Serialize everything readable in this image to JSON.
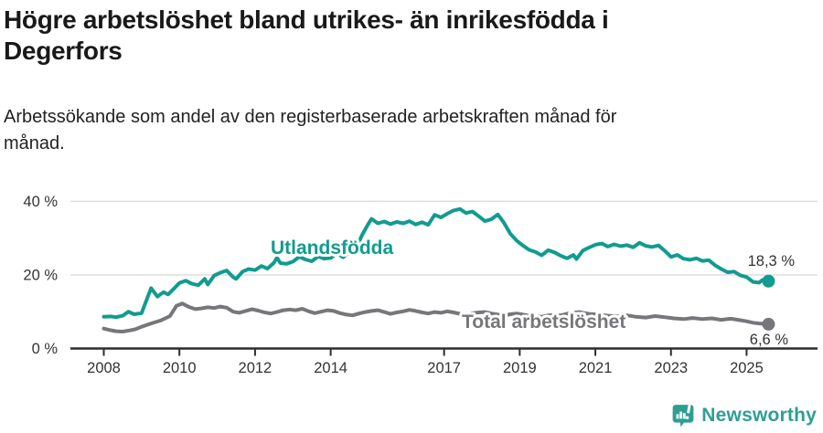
{
  "header": {
    "title_lines": [
      "Högre arbetslöshet bland utrikes- än inrikesfödda i",
      "Degerfors"
    ],
    "subtitle_lines": [
      "Arbetssökande som andel av den registerbaserade arbetskraften månad för",
      "månad."
    ]
  },
  "chart_data": {
    "type": "line",
    "title": "",
    "xlabel": "",
    "ylabel": "",
    "y_unit": "%",
    "ylim": [
      0,
      40
    ],
    "xlim": [
      2007.9,
      2025.9
    ],
    "grid": "horizontal-light",
    "legend_position": "inline-labels",
    "ytick_values": [
      0,
      20,
      40
    ],
    "ytick_labels": [
      "0 %",
      "20 %",
      "40 %"
    ],
    "xtick_values": [
      2008,
      2010,
      2012,
      2014,
      2017,
      2019,
      2021,
      2023,
      2025
    ],
    "xtick_labels": [
      "2008",
      "2010",
      "2012",
      "2014",
      "2017",
      "2019",
      "2021",
      "2023",
      "2025"
    ],
    "series": [
      {
        "name": "Utlandsfödda",
        "color": "#129B90",
        "end_label": "18,3 %",
        "end_value": 18.3,
        "points": [
          [
            2008.0,
            8.6
          ],
          [
            2008.17,
            8.7
          ],
          [
            2008.33,
            8.5
          ],
          [
            2008.5,
            8.9
          ],
          [
            2008.65,
            10.0
          ],
          [
            2008.8,
            9.3
          ],
          [
            2009.0,
            9.6
          ],
          [
            2009.25,
            16.4
          ],
          [
            2009.42,
            14.1
          ],
          [
            2009.58,
            15.3
          ],
          [
            2009.7,
            14.7
          ],
          [
            2009.85,
            16.2
          ],
          [
            2010.0,
            17.8
          ],
          [
            2010.17,
            18.4
          ],
          [
            2010.33,
            17.6
          ],
          [
            2010.5,
            17.2
          ],
          [
            2010.67,
            18.9
          ],
          [
            2010.75,
            17.4
          ],
          [
            2010.92,
            19.8
          ],
          [
            2011.08,
            20.6
          ],
          [
            2011.25,
            21.2
          ],
          [
            2011.42,
            19.4
          ],
          [
            2011.5,
            18.9
          ],
          [
            2011.67,
            20.9
          ],
          [
            2011.83,
            21.6
          ],
          [
            2012.0,
            21.3
          ],
          [
            2012.17,
            22.4
          ],
          [
            2012.33,
            21.7
          ],
          [
            2012.5,
            23.3
          ],
          [
            2012.58,
            24.7
          ],
          [
            2012.67,
            23.2
          ],
          [
            2012.83,
            23.0
          ],
          [
            2013.0,
            23.6
          ],
          [
            2013.17,
            24.9
          ],
          [
            2013.33,
            24.2
          ],
          [
            2013.5,
            23.7
          ],
          [
            2013.67,
            25.0
          ],
          [
            2013.83,
            24.4
          ],
          [
            2014.0,
            24.6
          ],
          [
            2014.17,
            25.9
          ],
          [
            2014.33,
            24.8
          ],
          [
            2014.5,
            26.2
          ],
          [
            2014.58,
            27.8
          ],
          [
            2014.67,
            27.2
          ],
          [
            2014.83,
            30.8
          ],
          [
            2015.0,
            33.9
          ],
          [
            2015.08,
            35.2
          ],
          [
            2015.25,
            34.0
          ],
          [
            2015.42,
            34.5
          ],
          [
            2015.58,
            33.8
          ],
          [
            2015.75,
            34.4
          ],
          [
            2015.92,
            34.0
          ],
          [
            2016.08,
            34.6
          ],
          [
            2016.25,
            33.7
          ],
          [
            2016.42,
            34.3
          ],
          [
            2016.58,
            33.6
          ],
          [
            2016.75,
            36.3
          ],
          [
            2016.92,
            35.6
          ],
          [
            2017.08,
            36.6
          ],
          [
            2017.25,
            37.5
          ],
          [
            2017.42,
            37.9
          ],
          [
            2017.58,
            36.8
          ],
          [
            2017.75,
            37.2
          ],
          [
            2017.92,
            35.9
          ],
          [
            2018.08,
            34.6
          ],
          [
            2018.25,
            35.1
          ],
          [
            2018.42,
            36.4
          ],
          [
            2018.58,
            34.2
          ],
          [
            2018.75,
            31.2
          ],
          [
            2018.92,
            29.3
          ],
          [
            2019.08,
            28.0
          ],
          [
            2019.25,
            26.8
          ],
          [
            2019.42,
            26.2
          ],
          [
            2019.58,
            25.3
          ],
          [
            2019.75,
            26.7
          ],
          [
            2019.92,
            26.1
          ],
          [
            2020.08,
            25.2
          ],
          [
            2020.25,
            24.5
          ],
          [
            2020.42,
            25.4
          ],
          [
            2020.5,
            24.3
          ],
          [
            2020.67,
            26.6
          ],
          [
            2020.83,
            27.4
          ],
          [
            2021.0,
            28.2
          ],
          [
            2021.17,
            28.5
          ],
          [
            2021.33,
            27.7
          ],
          [
            2021.5,
            28.3
          ],
          [
            2021.67,
            27.8
          ],
          [
            2021.83,
            28.1
          ],
          [
            2022.0,
            27.5
          ],
          [
            2022.17,
            28.7
          ],
          [
            2022.33,
            27.9
          ],
          [
            2022.5,
            27.6
          ],
          [
            2022.67,
            28.0
          ],
          [
            2022.83,
            26.6
          ],
          [
            2023.0,
            24.9
          ],
          [
            2023.17,
            25.4
          ],
          [
            2023.33,
            24.4
          ],
          [
            2023.5,
            24.1
          ],
          [
            2023.67,
            24.5
          ],
          [
            2023.83,
            23.8
          ],
          [
            2024.0,
            24.0
          ],
          [
            2024.17,
            22.6
          ],
          [
            2024.33,
            21.6
          ],
          [
            2024.5,
            20.7
          ],
          [
            2024.67,
            20.9
          ],
          [
            2024.83,
            19.9
          ],
          [
            2025.0,
            19.4
          ],
          [
            2025.17,
            18.1
          ],
          [
            2025.33,
            17.9
          ],
          [
            2025.42,
            18.6
          ],
          [
            2025.58,
            18.3
          ]
        ]
      },
      {
        "name": "Total arbetslöshet",
        "color": "#77777B",
        "end_label": "6,6 %",
        "end_value": 6.6,
        "points": [
          [
            2008.0,
            5.4
          ],
          [
            2008.17,
            5.0
          ],
          [
            2008.33,
            4.7
          ],
          [
            2008.5,
            4.6
          ],
          [
            2008.67,
            4.9
          ],
          [
            2008.83,
            5.2
          ],
          [
            2009.0,
            5.9
          ],
          [
            2009.25,
            6.8
          ],
          [
            2009.5,
            7.6
          ],
          [
            2009.75,
            8.8
          ],
          [
            2009.92,
            11.6
          ],
          [
            2010.08,
            12.2
          ],
          [
            2010.25,
            11.3
          ],
          [
            2010.42,
            10.7
          ],
          [
            2010.58,
            10.9
          ],
          [
            2010.75,
            11.2
          ],
          [
            2010.92,
            11.0
          ],
          [
            2011.08,
            11.4
          ],
          [
            2011.25,
            11.1
          ],
          [
            2011.42,
            10.0
          ],
          [
            2011.58,
            9.7
          ],
          [
            2011.75,
            10.2
          ],
          [
            2011.92,
            10.7
          ],
          [
            2012.08,
            10.3
          ],
          [
            2012.25,
            9.8
          ],
          [
            2012.42,
            9.5
          ],
          [
            2012.58,
            9.9
          ],
          [
            2012.75,
            10.4
          ],
          [
            2012.92,
            10.6
          ],
          [
            2013.08,
            10.4
          ],
          [
            2013.25,
            10.8
          ],
          [
            2013.42,
            10.1
          ],
          [
            2013.58,
            9.6
          ],
          [
            2013.75,
            10.0
          ],
          [
            2013.92,
            10.4
          ],
          [
            2014.08,
            10.2
          ],
          [
            2014.25,
            9.6
          ],
          [
            2014.42,
            9.2
          ],
          [
            2014.58,
            9.0
          ],
          [
            2014.75,
            9.5
          ],
          [
            2014.92,
            9.9
          ],
          [
            2015.08,
            10.2
          ],
          [
            2015.25,
            10.4
          ],
          [
            2015.42,
            9.9
          ],
          [
            2015.58,
            9.4
          ],
          [
            2015.75,
            9.8
          ],
          [
            2015.92,
            10.1
          ],
          [
            2016.08,
            10.5
          ],
          [
            2016.25,
            10.2
          ],
          [
            2016.42,
            9.8
          ],
          [
            2016.58,
            9.5
          ],
          [
            2016.75,
            9.9
          ],
          [
            2016.92,
            9.7
          ],
          [
            2017.08,
            10.1
          ],
          [
            2017.25,
            9.8
          ],
          [
            2017.42,
            9.4
          ],
          [
            2017.58,
            9.1
          ],
          [
            2017.75,
            9.6
          ],
          [
            2017.92,
            9.8
          ],
          [
            2018.08,
            9.9
          ],
          [
            2018.25,
            9.5
          ],
          [
            2018.42,
            9.2
          ],
          [
            2018.58,
            8.9
          ],
          [
            2018.75,
            9.3
          ],
          [
            2018.92,
            9.5
          ],
          [
            2019.08,
            9.2
          ],
          [
            2019.25,
            8.9
          ],
          [
            2019.42,
            8.7
          ],
          [
            2019.58,
            8.6
          ],
          [
            2019.75,
            9.0
          ],
          [
            2019.92,
            9.1
          ],
          [
            2020.08,
            9.0
          ],
          [
            2020.33,
            9.6
          ],
          [
            2020.58,
            9.9
          ],
          [
            2020.83,
            9.4
          ],
          [
            2021.08,
            9.2
          ],
          [
            2021.33,
            8.9
          ],
          [
            2021.58,
            8.7
          ],
          [
            2021.83,
            9.0
          ],
          [
            2022.08,
            8.6
          ],
          [
            2022.33,
            8.4
          ],
          [
            2022.58,
            8.8
          ],
          [
            2022.83,
            8.5
          ],
          [
            2023.08,
            8.2
          ],
          [
            2023.33,
            8.0
          ],
          [
            2023.58,
            8.3
          ],
          [
            2023.83,
            8.0
          ],
          [
            2024.08,
            8.2
          ],
          [
            2024.33,
            7.8
          ],
          [
            2024.58,
            8.1
          ],
          [
            2024.83,
            7.7
          ],
          [
            2025.0,
            7.4
          ],
          [
            2025.17,
            7.0
          ],
          [
            2025.33,
            6.8
          ],
          [
            2025.58,
            6.6
          ]
        ]
      }
    ]
  },
  "footer": {
    "brand": "Newsworthy",
    "brand_color": "#2E9E95"
  }
}
